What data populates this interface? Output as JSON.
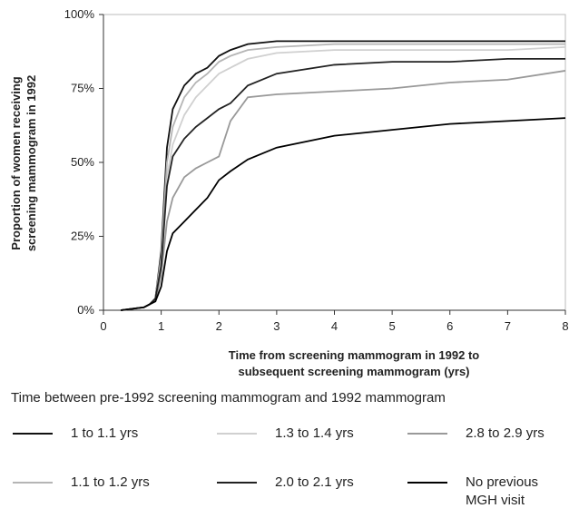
{
  "chart_data": {
    "type": "line",
    "ylabel": [
      "Proportion of women receiving",
      "screening mammogram in 1992"
    ],
    "xlabel": [
      "Time from screening mammogram in 1992 to",
      "subsequent screening mammogram (yrs)"
    ],
    "legend_title": "Time between pre-1992 screening mammogram and 1992 mammogram",
    "x": [
      0.3,
      0.5,
      0.7,
      0.8,
      0.9,
      1.0,
      1.1,
      1.2,
      1.4,
      1.6,
      1.8,
      2.0,
      2.2,
      2.5,
      3,
      4,
      5,
      6,
      7,
      8
    ],
    "series": [
      {
        "name": "1 to 1.1 yrs",
        "color": "#111111",
        "values": [
          0,
          0.5,
          1,
          2,
          4,
          20,
          55,
          68,
          76,
          80,
          82,
          86,
          88,
          90,
          91,
          91,
          91,
          91,
          91,
          91
        ]
      },
      {
        "name": "1.3 to 1.4 yrs",
        "color": "#d0d0d0",
        "values": [
          0,
          0.5,
          1,
          2,
          4,
          16,
          45,
          56,
          66,
          72,
          76,
          80,
          82,
          85,
          87,
          88,
          88,
          88,
          88,
          89
        ]
      },
      {
        "name": "2.8 to 2.9 yrs",
        "color": "#999999",
        "values": [
          0,
          0.5,
          1,
          2,
          3,
          12,
          30,
          38,
          45,
          48,
          50,
          52,
          64,
          72,
          73,
          74,
          75,
          77,
          78,
          81
        ]
      },
      {
        "name": "1.1 to 1.2 yrs",
        "color": "#b5b5b5",
        "values": [
          0,
          0.5,
          1,
          2,
          4,
          18,
          50,
          62,
          72,
          77,
          80,
          84,
          86,
          88,
          89,
          90,
          90,
          90,
          90,
          90
        ]
      },
      {
        "name": "2.0 to 2.1 yrs",
        "color": "#222222",
        "values": [
          0,
          0.5,
          1,
          2,
          4,
          15,
          42,
          52,
          58,
          62,
          65,
          68,
          70,
          76,
          80,
          83,
          84,
          84,
          85,
          85
        ]
      },
      {
        "name": "No previous MGH visit",
        "color": "#000000",
        "values": [
          0,
          0.5,
          1,
          2,
          3,
          8,
          20,
          26,
          30,
          34,
          38,
          44,
          47,
          51,
          55,
          59,
          61,
          63,
          64,
          65
        ]
      }
    ],
    "xlim": [
      0,
      8
    ],
    "xticks": [
      0,
      1,
      2,
      3,
      4,
      5,
      6,
      7,
      8
    ],
    "ylim": [
      0,
      100
    ],
    "yticks": [
      {
        "value": 0,
        "label": "0%"
      },
      {
        "value": 25,
        "label": "25%"
      },
      {
        "value": 50,
        "label": "50%"
      },
      {
        "value": 75,
        "label": "75%"
      },
      {
        "value": 100,
        "label": "100%"
      }
    ],
    "grid": false
  }
}
